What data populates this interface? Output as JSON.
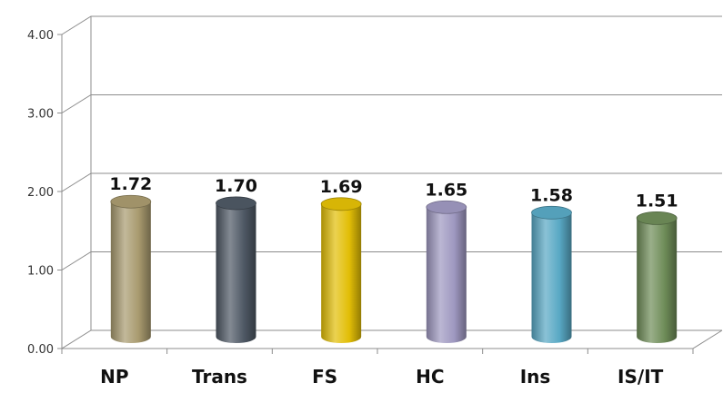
{
  "chart_data": {
    "type": "bar",
    "categories": [
      "NP",
      "Trans",
      "FS",
      "HC",
      "Ins",
      "IS/IT"
    ],
    "values": [
      1.72,
      1.7,
      1.69,
      1.65,
      1.58,
      1.51
    ],
    "value_labels": [
      "1.72",
      "1.70",
      "1.69",
      "1.65",
      "1.58",
      "1.51"
    ],
    "yticks": [
      "0.00",
      "1.00",
      "2.00",
      "3.00",
      "4.00"
    ],
    "ylim": [
      0,
      4
    ],
    "grid": true,
    "style": "3d-cylinder",
    "colors": [
      "#a89a6e",
      "#4e5864",
      "#e2be06",
      "#9e98c0",
      "#58a8c4",
      "#6e8c58"
    ]
  }
}
